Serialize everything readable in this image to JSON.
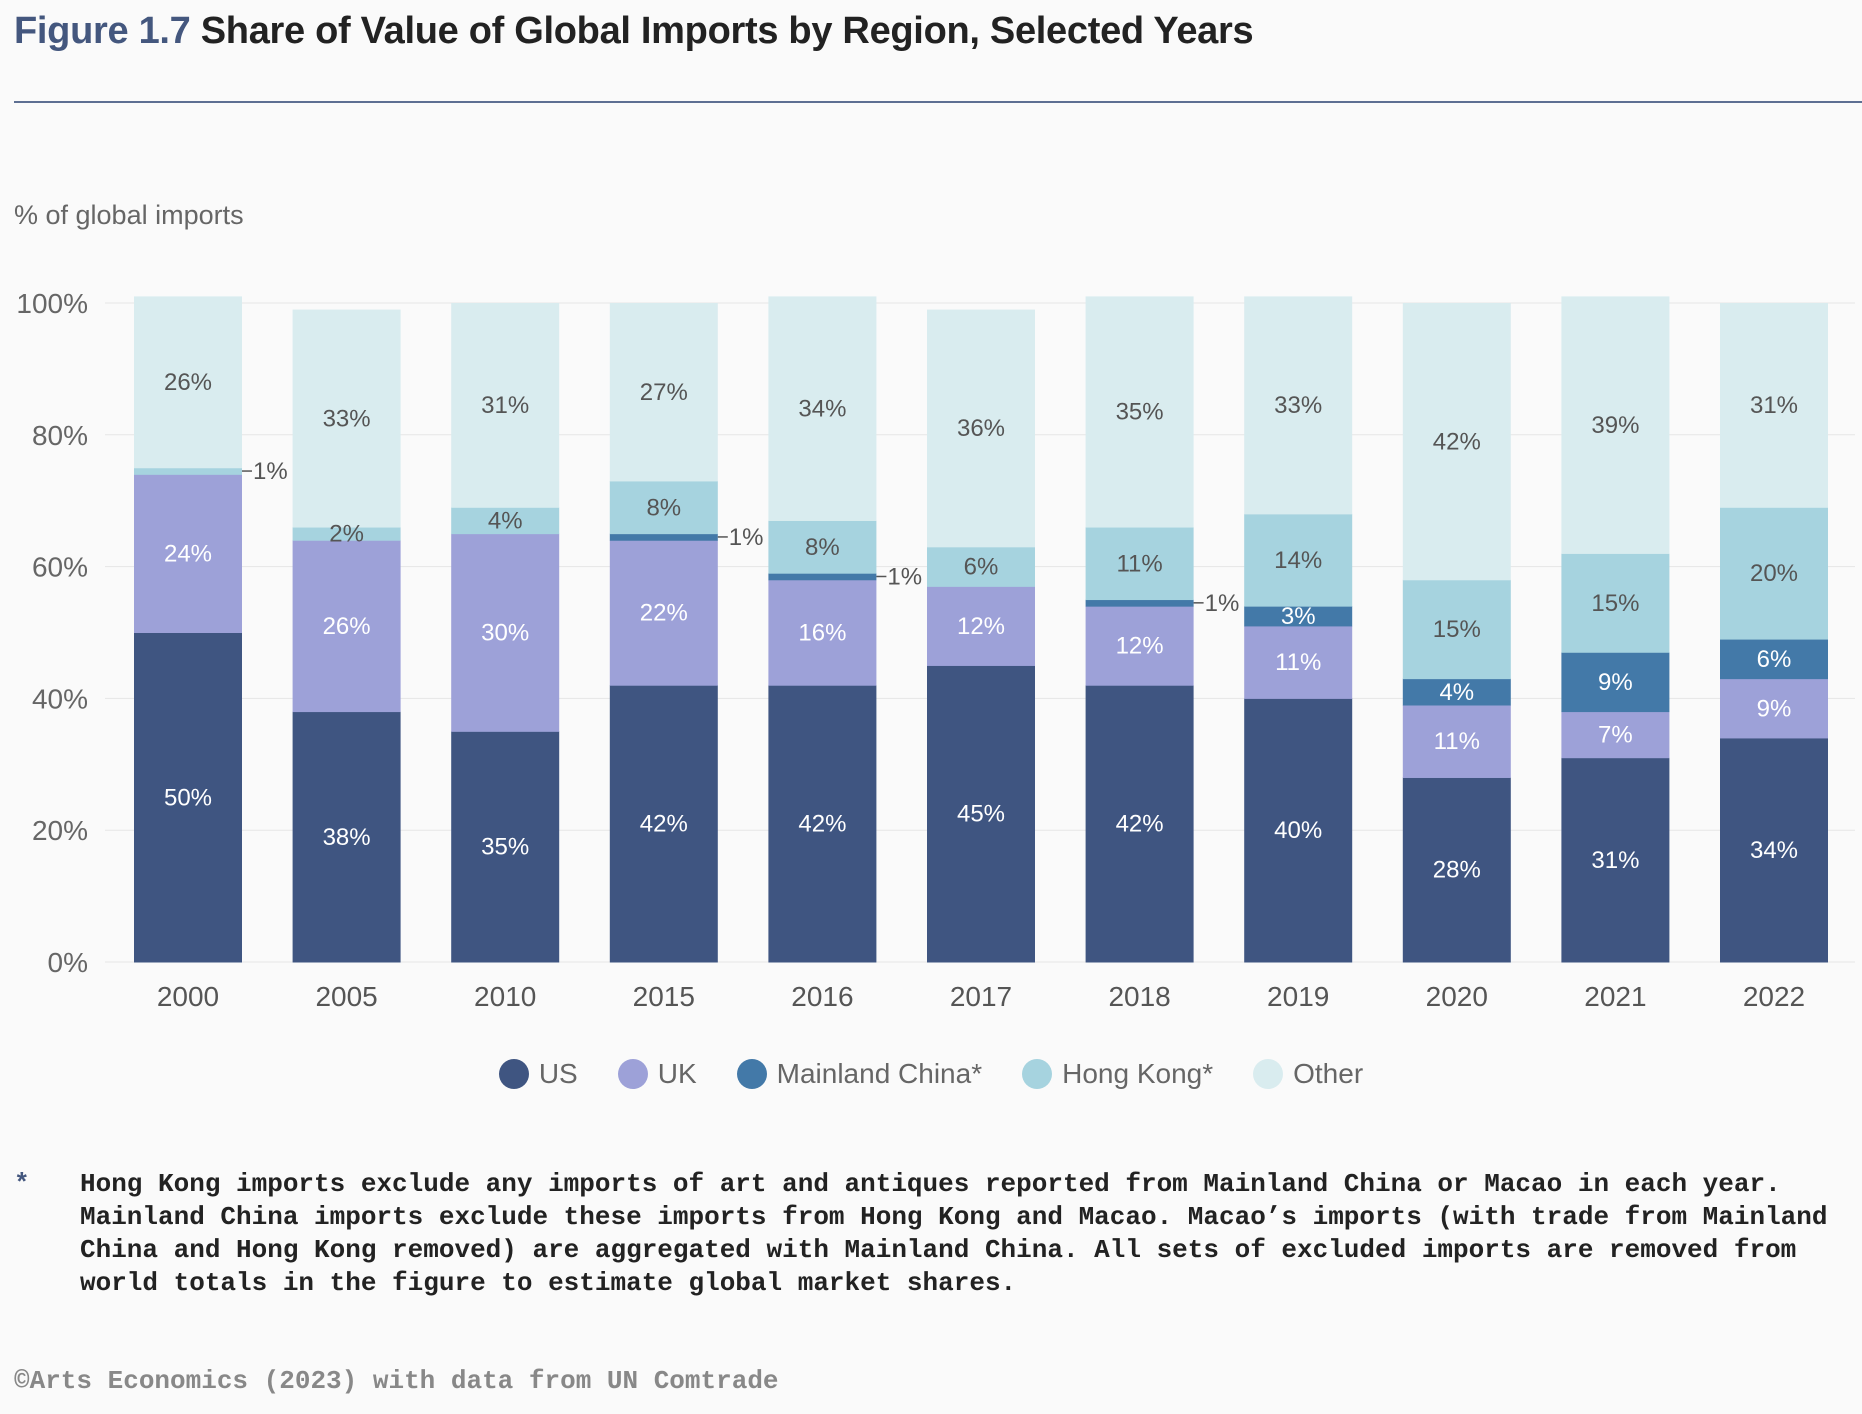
{
  "figure": {
    "number": "Figure 1.7",
    "title": "Share of Value of Global Imports by Region, Selected Years"
  },
  "footnote": {
    "marker": "*",
    "text": "Hong Kong imports exclude any imports of art and antiques reported from Mainland China or Macao in each year. Mainland China imports exclude these imports from Hong Kong and Macao. Macao’s imports (with trade from Mainland China and Hong Kong removed) are aggregated with Mainland China. All sets of excluded imports are removed from world totals in the figure to estimate global market shares."
  },
  "source": "©Arts Economics (2023) with data from UN Comtrade",
  "chart_data": {
    "type": "bar",
    "stacked": true,
    "title": "Share of Value of Global Imports by Region, Selected Years",
    "ylabel": "% of global imports",
    "xlabel": "",
    "ylim": [
      0,
      100
    ],
    "yticks": [
      0,
      20,
      40,
      60,
      80,
      100
    ],
    "ytick_labels": [
      "0%",
      "20%",
      "40%",
      "60%",
      "80%",
      "100%"
    ],
    "grid": true,
    "legend_position": "bottom-center",
    "categories": [
      "2000",
      "2005",
      "2010",
      "2015",
      "2016",
      "2017",
      "2018",
      "2019",
      "2020",
      "2021",
      "2022"
    ],
    "series": [
      {
        "name": "US",
        "color": "#3f5581",
        "label_color": "#ffffff",
        "values": [
          50,
          38,
          35,
          42,
          42,
          45,
          42,
          40,
          28,
          31,
          34
        ]
      },
      {
        "name": "UK",
        "color": "#9da1d8",
        "label_color": "#ffffff",
        "values": [
          24,
          26,
          30,
          22,
          16,
          12,
          12,
          11,
          11,
          7,
          9
        ]
      },
      {
        "name": "Mainland China*",
        "color": "#4379a8",
        "label_color": "#ffffff",
        "values": [
          0,
          0,
          0,
          1,
          1,
          0,
          1,
          3,
          4,
          9,
          6
        ]
      },
      {
        "name": "Hong Kong*",
        "color": "#a6d3df",
        "label_color": "#555555",
        "values": [
          1,
          2,
          4,
          8,
          8,
          6,
          11,
          14,
          15,
          15,
          20
        ]
      },
      {
        "name": "Other",
        "color": "#d9ecef",
        "label_color": "#555555",
        "values": [
          26,
          33,
          31,
          27,
          34,
          36,
          35,
          33,
          42,
          39,
          31
        ]
      }
    ],
    "callouts": [
      {
        "category": "2000",
        "series": "Hong Kong*",
        "label": "1%"
      },
      {
        "category": "2015",
        "series": "Mainland China*",
        "label": "1%"
      },
      {
        "category": "2016",
        "series": "Mainland China*",
        "label": "1%"
      },
      {
        "category": "2018",
        "series": "Mainland China*",
        "label": "1%"
      }
    ]
  }
}
